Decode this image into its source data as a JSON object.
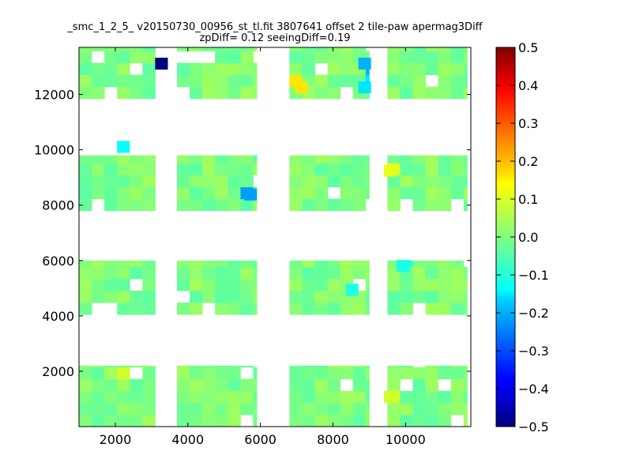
{
  "chart_data": {
    "type": "heatmap",
    "title": "_smc_1_2_5_ v20150730_00956_st_tl.fit 3807641 offset 2 tile-paw apermag3Diff",
    "subtitle": "zpDiff= 0.12 seeingDiff=0.19",
    "xlabel": "",
    "ylabel": "",
    "xlim": [
      1000,
      11800
    ],
    "ylim": [
      0,
      13700
    ],
    "x_ticks": [
      2000,
      4000,
      6000,
      8000,
      10000
    ],
    "y_ticks": [
      2000,
      4000,
      6000,
      8000,
      10000,
      12000
    ],
    "x_tick_labels": [
      "2000",
      "4000",
      "6000",
      "8000",
      "10000"
    ],
    "y_tick_labels": [
      "2000",
      "4000",
      "6000",
      "8000",
      "10000",
      "12000"
    ],
    "colorbar": {
      "colormap": "jet",
      "vmin": -0.5,
      "vmax": 0.5,
      "ticks": [
        0.5,
        0.4,
        0.3,
        0.2,
        0.1,
        0.0,
        -0.1,
        -0.2,
        -0.3,
        -0.4,
        -0.5
      ],
      "tick_labels": [
        "0.5",
        "0.4",
        "0.3",
        "0.2",
        "0.1",
        "0.0",
        "−0.1",
        "−0.2",
        "−0.3",
        "−0.4",
        "−0.5"
      ]
    },
    "grid": false,
    "cell_size": [
      350,
      430
    ],
    "detector_blocks": {
      "x_ranges": [
        [
          1000,
          3100
        ],
        [
          3700,
          5900
        ],
        [
          6800,
          9000
        ],
        [
          9500,
          11700
        ]
      ],
      "y_ranges": [
        [
          0,
          2200
        ],
        [
          4050,
          6000
        ],
        [
          7800,
          9800
        ],
        [
          11850,
          13700
        ]
      ]
    },
    "default_value": 0.0,
    "noise_amplitude": 0.035,
    "special_cells": [
      {
        "x": 3200,
        "y": 13100,
        "value": -0.5
      },
      {
        "x": 6950,
        "y": 12450,
        "value": 0.15
      },
      {
        "x": 9000,
        "y": 13100,
        "value": -0.2
      },
      {
        "x": 9000,
        "y": 12450,
        "value": -0.15
      },
      {
        "x": 5600,
        "y": 8300,
        "value": -0.22
      },
      {
        "x": 2200,
        "y": 10050,
        "value": -0.12
      },
      {
        "x": 9500,
        "y": 9150,
        "value": 0.1
      },
      {
        "x": 8600,
        "y": 5000,
        "value": -0.1
      },
      {
        "x": 10000,
        "y": 5900,
        "value": -0.1
      },
      {
        "x": 2350,
        "y": 2050,
        "value": 0.08
      },
      {
        "x": 9500,
        "y": 1200,
        "value": 0.08
      }
    ]
  }
}
